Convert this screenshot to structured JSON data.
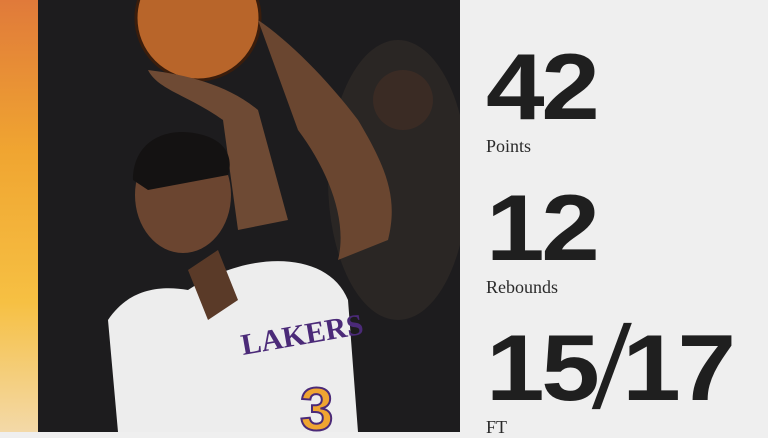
{
  "stats": [
    {
      "value": "42",
      "label": "Points"
    },
    {
      "value": "12",
      "label": "Rebounds"
    },
    {
      "value_made": "15",
      "separator": "/",
      "value_attempted": "17",
      "label": "FT"
    }
  ],
  "jersey_text": "LAKERS",
  "jersey_number": "3",
  "colors": {
    "panel_bg": "#efefef",
    "stat_text": "#1f1f1f",
    "photo_bg": "#1d1c1e",
    "accent_gold": "#f0a531"
  }
}
